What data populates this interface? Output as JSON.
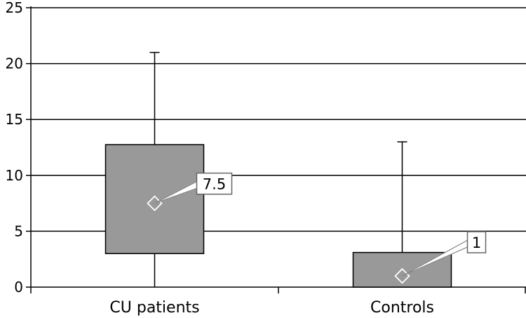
{
  "chart_data": {
    "type": "boxplot",
    "categories": [
      "CU patients",
      "Controls"
    ],
    "series": [
      {
        "stats": [
          {
            "min": 0,
            "q1": 3,
            "median": 7.5,
            "q3": 12.75,
            "max": 21
          },
          {
            "min": 0,
            "q1": 0,
            "median": 1,
            "q3": 3.1,
            "max": 13
          }
        ]
      }
    ],
    "median_labels": [
      "7.5",
      "1"
    ],
    "ylim": [
      0,
      25
    ],
    "yticks": [
      0,
      5,
      10,
      15,
      20,
      25
    ],
    "ytick_labels": [
      "0",
      "5",
      "10",
      "15",
      "20",
      "25"
    ],
    "grid": true,
    "colors": {
      "box": "#999999",
      "grid": "#000000"
    }
  }
}
